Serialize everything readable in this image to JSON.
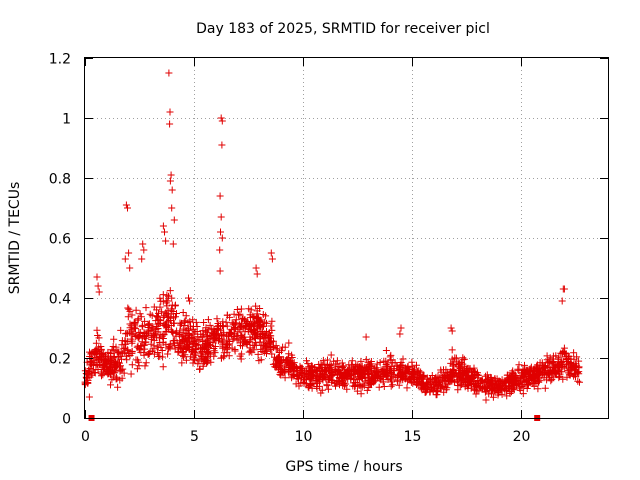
{
  "chart_data": {
    "type": "scatter",
    "title": "Day 183 of 2025, SRMTID for receiver picl",
    "xlabel": "GPS time / hours",
    "ylabel": "SRMTID / TECUs",
    "xlim": [
      0,
      24
    ],
    "ylim": [
      0,
      1.2
    ],
    "xticks": [
      0,
      5,
      10,
      15,
      20
    ],
    "yticks": [
      0,
      0.2,
      0.4,
      0.6,
      0.8,
      1,
      1.2
    ],
    "xtick_labels": [
      "0",
      "5",
      "10",
      "15",
      "20"
    ],
    "ytick_labels": [
      "0",
      "0.2",
      "0.4",
      "0.6",
      "0.8",
      "1",
      "1.2"
    ],
    "grid": true,
    "marker": "+",
    "color": "#e00000",
    "data_span_hours": [
      0,
      22.7
    ],
    "highlight_points": [
      {
        "x": 3.85,
        "y": 1.15
      },
      {
        "x": 3.9,
        "y": 1.02
      },
      {
        "x": 3.88,
        "y": 0.98
      },
      {
        "x": 3.95,
        "y": 0.81
      },
      {
        "x": 3.92,
        "y": 0.79
      },
      {
        "x": 4.0,
        "y": 0.76
      },
      {
        "x": 3.6,
        "y": 0.64
      },
      {
        "x": 3.65,
        "y": 0.62
      },
      {
        "x": 3.7,
        "y": 0.59
      },
      {
        "x": 4.05,
        "y": 0.58
      },
      {
        "x": 4.1,
        "y": 0.66
      },
      {
        "x": 3.98,
        "y": 0.7
      },
      {
        "x": 6.25,
        "y": 1.0
      },
      {
        "x": 6.3,
        "y": 0.99
      },
      {
        "x": 6.28,
        "y": 0.91
      },
      {
        "x": 6.2,
        "y": 0.74
      },
      {
        "x": 6.25,
        "y": 0.67
      },
      {
        "x": 6.22,
        "y": 0.62
      },
      {
        "x": 6.3,
        "y": 0.6
      },
      {
        "x": 6.18,
        "y": 0.56
      },
      {
        "x": 6.2,
        "y": 0.49
      },
      {
        "x": 1.9,
        "y": 0.71
      },
      {
        "x": 1.95,
        "y": 0.7
      },
      {
        "x": 2.0,
        "y": 0.55
      },
      {
        "x": 1.85,
        "y": 0.53
      },
      {
        "x": 2.05,
        "y": 0.5
      },
      {
        "x": 2.65,
        "y": 0.58
      },
      {
        "x": 2.7,
        "y": 0.56
      },
      {
        "x": 2.6,
        "y": 0.53
      },
      {
        "x": 4.75,
        "y": 0.4
      },
      {
        "x": 4.8,
        "y": 0.39
      },
      {
        "x": 0.55,
        "y": 0.47
      },
      {
        "x": 0.6,
        "y": 0.44
      },
      {
        "x": 0.65,
        "y": 0.42
      },
      {
        "x": 8.55,
        "y": 0.55
      },
      {
        "x": 8.6,
        "y": 0.53
      },
      {
        "x": 7.85,
        "y": 0.5
      },
      {
        "x": 7.9,
        "y": 0.48
      },
      {
        "x": 21.95,
        "y": 0.43
      },
      {
        "x": 22.0,
        "y": 0.43
      },
      {
        "x": 21.9,
        "y": 0.39
      },
      {
        "x": 14.5,
        "y": 0.3
      },
      {
        "x": 14.45,
        "y": 0.28
      },
      {
        "x": 16.8,
        "y": 0.3
      },
      {
        "x": 16.85,
        "y": 0.29
      },
      {
        "x": 12.9,
        "y": 0.27
      },
      {
        "x": 11.3,
        "y": 0.21
      },
      {
        "x": 9.35,
        "y": 0.25
      },
      {
        "x": 0.2,
        "y": 0.07
      },
      {
        "x": 18.4,
        "y": 0.06
      }
    ],
    "envelope": [
      {
        "x": 0.0,
        "lo": 0.08,
        "hi": 0.17
      },
      {
        "x": 0.5,
        "lo": 0.08,
        "hi": 0.28
      },
      {
        "x": 1.0,
        "lo": 0.08,
        "hi": 0.22
      },
      {
        "x": 1.5,
        "lo": 0.07,
        "hi": 0.24
      },
      {
        "x": 2.0,
        "lo": 0.07,
        "hi": 0.4
      },
      {
        "x": 2.5,
        "lo": 0.08,
        "hi": 0.35
      },
      {
        "x": 3.0,
        "lo": 0.1,
        "hi": 0.38
      },
      {
        "x": 3.5,
        "lo": 0.11,
        "hi": 0.4
      },
      {
        "x": 4.0,
        "lo": 0.12,
        "hi": 0.42
      },
      {
        "x": 4.5,
        "lo": 0.12,
        "hi": 0.34
      },
      {
        "x": 5.0,
        "lo": 0.12,
        "hi": 0.32
      },
      {
        "x": 5.5,
        "lo": 0.11,
        "hi": 0.3
      },
      {
        "x": 6.0,
        "lo": 0.12,
        "hi": 0.35
      },
      {
        "x": 6.5,
        "lo": 0.13,
        "hi": 0.34
      },
      {
        "x": 7.0,
        "lo": 0.14,
        "hi": 0.36
      },
      {
        "x": 7.5,
        "lo": 0.15,
        "hi": 0.38
      },
      {
        "x": 8.0,
        "lo": 0.14,
        "hi": 0.36
      },
      {
        "x": 8.5,
        "lo": 0.13,
        "hi": 0.32
      },
      {
        "x": 9.0,
        "lo": 0.1,
        "hi": 0.22
      },
      {
        "x": 10.0,
        "lo": 0.08,
        "hi": 0.18
      },
      {
        "x": 11.0,
        "lo": 0.08,
        "hi": 0.18
      },
      {
        "x": 12.0,
        "lo": 0.07,
        "hi": 0.19
      },
      {
        "x": 13.0,
        "lo": 0.07,
        "hi": 0.19
      },
      {
        "x": 14.0,
        "lo": 0.07,
        "hi": 0.2
      },
      {
        "x": 15.0,
        "lo": 0.08,
        "hi": 0.18
      },
      {
        "x": 16.0,
        "lo": 0.06,
        "hi": 0.12
      },
      {
        "x": 17.0,
        "lo": 0.06,
        "hi": 0.21
      },
      {
        "x": 18.0,
        "lo": 0.06,
        "hi": 0.15
      },
      {
        "x": 19.0,
        "lo": 0.05,
        "hi": 0.13
      },
      {
        "x": 20.0,
        "lo": 0.06,
        "hi": 0.17
      },
      {
        "x": 21.0,
        "lo": 0.08,
        "hi": 0.19
      },
      {
        "x": 22.0,
        "lo": 0.09,
        "hi": 0.23
      },
      {
        "x": 22.7,
        "lo": 0.11,
        "hi": 0.19
      }
    ],
    "fill_points_per_hour": 95,
    "bottom_markers": [
      {
        "x": 0.3,
        "y": 0
      },
      {
        "x": 20.75,
        "y": 0
      }
    ]
  }
}
